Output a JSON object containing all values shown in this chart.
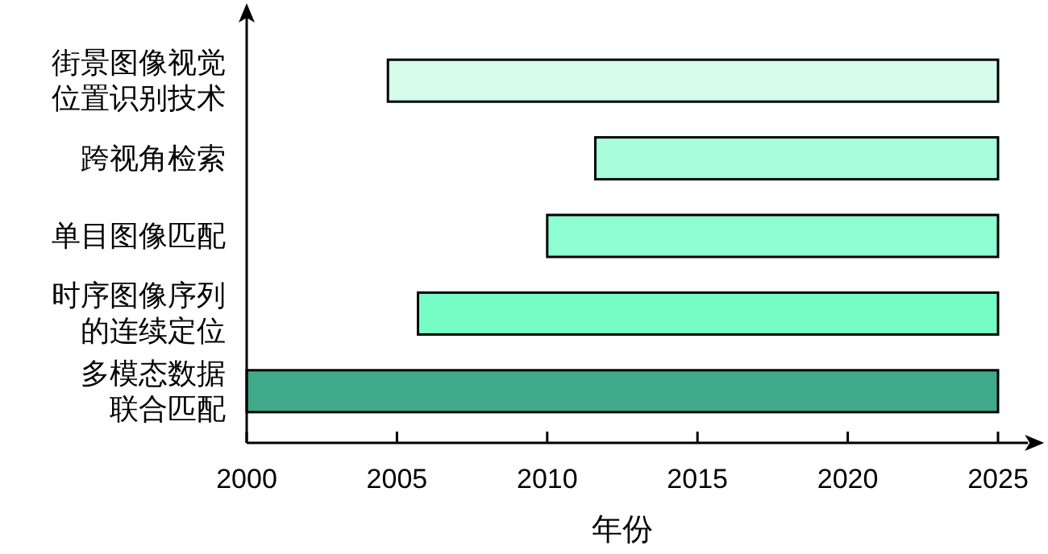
{
  "chart_data": {
    "type": "bar",
    "orientation": "horizontal",
    "xlabel": "年份",
    "categories": [
      "街景图像视觉位置识别技术",
      "跨视角检索",
      "单目图像匹配",
      "时序图像序列的连续定位",
      "多模态数据联合匹配"
    ],
    "base": [
      2004.7,
      2011.6,
      2010,
      2005.7,
      2000
    ],
    "values": [
      20.3,
      13.4,
      15,
      19.3,
      25
    ],
    "colors": [
      "#d5fbea",
      "#a8fddc",
      "#8ffdd2",
      "#76fdc6",
      "#3fa98a"
    ],
    "xlim": [
      2000,
      2026
    ],
    "xticks": [
      2000,
      2005,
      2010,
      2015,
      2020,
      2025
    ],
    "grid": false
  }
}
